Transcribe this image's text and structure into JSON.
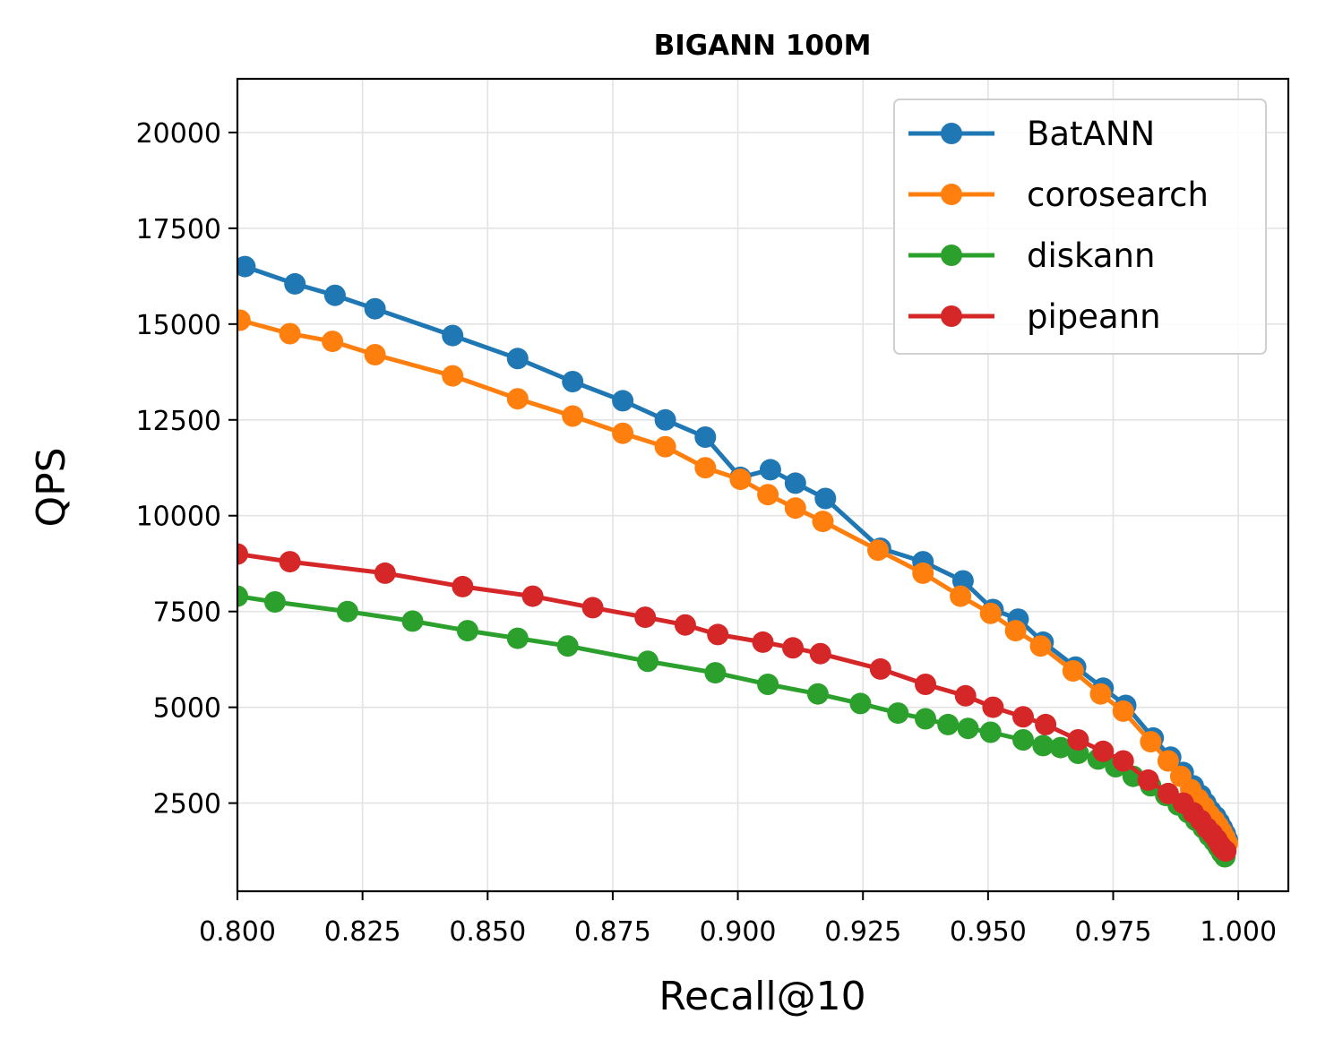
{
  "chart_data": {
    "type": "line",
    "title": "BIGANN 100M",
    "xlabel": "Recall@10",
    "ylabel": "QPS",
    "xlim": [
      0.8,
      1.01
    ],
    "ylim": [
      200,
      21400
    ],
    "xticks": [
      0.8,
      0.825,
      0.85,
      0.875,
      0.9,
      0.925,
      0.95,
      0.975,
      1.0
    ],
    "xtick_labels": [
      "0.800",
      "0.825",
      "0.850",
      "0.875",
      "0.900",
      "0.925",
      "0.950",
      "0.975",
      "1.000"
    ],
    "yticks": [
      2500,
      5000,
      7500,
      10000,
      12500,
      15000,
      17500,
      20000
    ],
    "ytick_labels": [
      "2500",
      "5000",
      "7500",
      "10000",
      "12500",
      "15000",
      "17500",
      "20000"
    ],
    "grid": true,
    "legend_position": "top-right",
    "series": [
      {
        "name": "BatANN",
        "color": "#1f77b4",
        "points": [
          [
            0.8015,
            16500
          ],
          [
            0.8115,
            16050
          ],
          [
            0.8195,
            15750
          ],
          [
            0.8275,
            15400
          ],
          [
            0.843,
            14700
          ],
          [
            0.856,
            14100
          ],
          [
            0.867,
            13500
          ],
          [
            0.877,
            13000
          ],
          [
            0.8855,
            12500
          ],
          [
            0.8935,
            12050
          ],
          [
            0.9005,
            11000
          ],
          [
            0.9065,
            11200
          ],
          [
            0.9115,
            10850
          ],
          [
            0.9175,
            10450
          ],
          [
            0.9285,
            9150
          ],
          [
            0.937,
            8800
          ],
          [
            0.945,
            8300
          ],
          [
            0.951,
            7550
          ],
          [
            0.956,
            7300
          ],
          [
            0.961,
            6700
          ],
          [
            0.9675,
            6050
          ],
          [
            0.973,
            5500
          ],
          [
            0.9775,
            5050
          ],
          [
            0.983,
            4200
          ],
          [
            0.9865,
            3700
          ],
          [
            0.989,
            3300
          ],
          [
            0.991,
            2950
          ],
          [
            0.9925,
            2700
          ],
          [
            0.9935,
            2500
          ],
          [
            0.9945,
            2300
          ],
          [
            0.9955,
            2150
          ],
          [
            0.9962,
            2000
          ],
          [
            0.9968,
            1850
          ],
          [
            0.9974,
            1700
          ],
          [
            0.9978,
            1550
          ]
        ]
      },
      {
        "name": "corosearch",
        "color": "#ff7f0e",
        "points": [
          [
            0.8005,
            15100
          ],
          [
            0.8105,
            14750
          ],
          [
            0.819,
            14550
          ],
          [
            0.8275,
            14200
          ],
          [
            0.843,
            13650
          ],
          [
            0.856,
            13050
          ],
          [
            0.867,
            12600
          ],
          [
            0.877,
            12150
          ],
          [
            0.8855,
            11800
          ],
          [
            0.8935,
            11250
          ],
          [
            0.9005,
            10950
          ],
          [
            0.906,
            10550
          ],
          [
            0.9115,
            10200
          ],
          [
            0.917,
            9850
          ],
          [
            0.928,
            9100
          ],
          [
            0.937,
            8500
          ],
          [
            0.9445,
            7900
          ],
          [
            0.9505,
            7450
          ],
          [
            0.9555,
            7000
          ],
          [
            0.9605,
            6600
          ],
          [
            0.967,
            5950
          ],
          [
            0.9725,
            5350
          ],
          [
            0.977,
            4900
          ],
          [
            0.9825,
            4100
          ],
          [
            0.986,
            3600
          ],
          [
            0.9885,
            3200
          ],
          [
            0.9905,
            2850
          ],
          [
            0.992,
            2600
          ],
          [
            0.9932,
            2400
          ],
          [
            0.9942,
            2200
          ],
          [
            0.9952,
            2050
          ],
          [
            0.996,
            1900
          ],
          [
            0.9967,
            1750
          ],
          [
            0.9973,
            1600
          ],
          [
            0.9978,
            1450
          ]
        ]
      },
      {
        "name": "diskann",
        "color": "#2ca02c",
        "points": [
          [
            0.8,
            7900
          ],
          [
            0.8075,
            7750
          ],
          [
            0.822,
            7500
          ],
          [
            0.835,
            7250
          ],
          [
            0.846,
            7000
          ],
          [
            0.856,
            6800
          ],
          [
            0.866,
            6600
          ],
          [
            0.882,
            6200
          ],
          [
            0.8955,
            5900
          ],
          [
            0.906,
            5600
          ],
          [
            0.916,
            5350
          ],
          [
            0.9245,
            5100
          ],
          [
            0.932,
            4850
          ],
          [
            0.9375,
            4700
          ],
          [
            0.942,
            4550
          ],
          [
            0.946,
            4450
          ],
          [
            0.9505,
            4350
          ],
          [
            0.957,
            4150
          ],
          [
            0.961,
            4000
          ],
          [
            0.9645,
            3950
          ],
          [
            0.968,
            3800
          ],
          [
            0.972,
            3650
          ],
          [
            0.9755,
            3450
          ],
          [
            0.979,
            3200
          ],
          [
            0.9825,
            2950
          ],
          [
            0.9855,
            2700
          ],
          [
            0.988,
            2450
          ],
          [
            0.99,
            2250
          ],
          [
            0.9915,
            2050
          ],
          [
            0.993,
            1850
          ],
          [
            0.9942,
            1650
          ],
          [
            0.9952,
            1500
          ],
          [
            0.996,
            1350
          ],
          [
            0.9967,
            1200
          ],
          [
            0.9973,
            1100
          ]
        ]
      },
      {
        "name": "pipeann",
        "color": "#d62728",
        "points": [
          [
            0.8,
            9000
          ],
          [
            0.8105,
            8800
          ],
          [
            0.8295,
            8500
          ],
          [
            0.845,
            8150
          ],
          [
            0.859,
            7900
          ],
          [
            0.871,
            7600
          ],
          [
            0.8815,
            7350
          ],
          [
            0.8895,
            7150
          ],
          [
            0.896,
            6900
          ],
          [
            0.905,
            6700
          ],
          [
            0.911,
            6550
          ],
          [
            0.9165,
            6400
          ],
          [
            0.9285,
            6000
          ],
          [
            0.9375,
            5600
          ],
          [
            0.9455,
            5300
          ],
          [
            0.951,
            5000
          ],
          [
            0.957,
            4750
          ],
          [
            0.9615,
            4550
          ],
          [
            0.968,
            4150
          ],
          [
            0.973,
            3850
          ],
          [
            0.977,
            3600
          ],
          [
            0.982,
            3100
          ],
          [
            0.986,
            2750
          ],
          [
            0.989,
            2500
          ],
          [
            0.991,
            2250
          ],
          [
            0.9925,
            2050
          ],
          [
            0.9937,
            1850
          ],
          [
            0.9948,
            1700
          ],
          [
            0.9957,
            1550
          ],
          [
            0.9964,
            1400
          ],
          [
            0.997,
            1300
          ],
          [
            0.9975,
            1250
          ]
        ]
      }
    ]
  }
}
